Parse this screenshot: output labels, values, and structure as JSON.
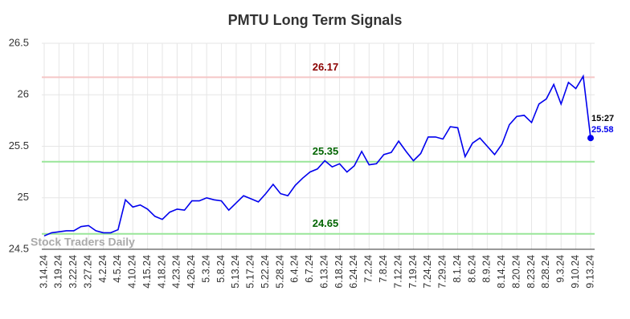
{
  "chart_data": {
    "type": "line",
    "title": "PMTU Long Term Signals",
    "categories": [
      "3.14.24",
      null,
      "3.19.24",
      null,
      "3.22.24",
      null,
      "3.27.24",
      null,
      "4.2.24",
      null,
      "4.5.24",
      null,
      "4.10.24",
      null,
      "4.15.24",
      null,
      "4.18.24",
      null,
      "4.23.24",
      null,
      "4.26.24",
      null,
      "5.3.24",
      null,
      "5.8.24",
      null,
      "5.13.24",
      null,
      "5.17.24",
      null,
      "5.22.24",
      null,
      "5.28.24",
      null,
      "6.4.24",
      null,
      "6.7.24",
      null,
      "6.13.24",
      null,
      "6.18.24",
      null,
      "6.24.24",
      null,
      "7.2.24",
      null,
      "7.8.24",
      null,
      "7.12.24",
      null,
      "7.19.24",
      null,
      "7.24.24",
      null,
      "7.29.24",
      null,
      "8.1.24",
      null,
      "8.6.24",
      null,
      "8.9.24",
      null,
      "8.14.24",
      null,
      "8.20.24",
      null,
      "8.23.24",
      null,
      "8.28.24",
      null,
      "9.3.24",
      null,
      "9.10.24",
      null,
      "9.13.24"
    ],
    "values": [
      24.63,
      24.66,
      24.67,
      24.68,
      24.68,
      24.72,
      24.73,
      24.68,
      24.66,
      24.66,
      24.69,
      24.98,
      24.91,
      24.93,
      24.89,
      24.82,
      24.79,
      24.86,
      24.89,
      24.88,
      24.97,
      24.97,
      25.0,
      24.98,
      24.97,
      24.88,
      24.95,
      25.02,
      24.99,
      24.96,
      25.04,
      25.13,
      25.04,
      25.02,
      25.12,
      25.19,
      25.25,
      25.28,
      25.36,
      25.3,
      25.33,
      25.25,
      25.31,
      25.45,
      25.32,
      25.33,
      25.42,
      25.44,
      25.55,
      25.45,
      25.36,
      25.43,
      25.59,
      25.59,
      25.57,
      25.69,
      25.68,
      25.4,
      25.53,
      25.58,
      25.5,
      25.42,
      25.52,
      25.71,
      25.79,
      25.8,
      25.73,
      25.91,
      25.96,
      26.1,
      25.91,
      26.12,
      26.06,
      26.18,
      25.58
    ],
    "color": "#0000ee",
    "ylim": [
      24.5,
      26.5
    ],
    "yticks": [
      24.5,
      25,
      25.5,
      26,
      26.5
    ],
    "grid": true,
    "hlines": [
      {
        "value": 26.17,
        "line_color": "#f5c6c6",
        "text_color": "#8b0000"
      },
      {
        "value": 25.35,
        "line_color": "#99e699",
        "text_color": "#006400"
      },
      {
        "value": 24.65,
        "line_color": "#99e699",
        "text_color": "#006400"
      }
    ],
    "last_time": "15:27",
    "watermark": "Stock Traders Daily"
  }
}
